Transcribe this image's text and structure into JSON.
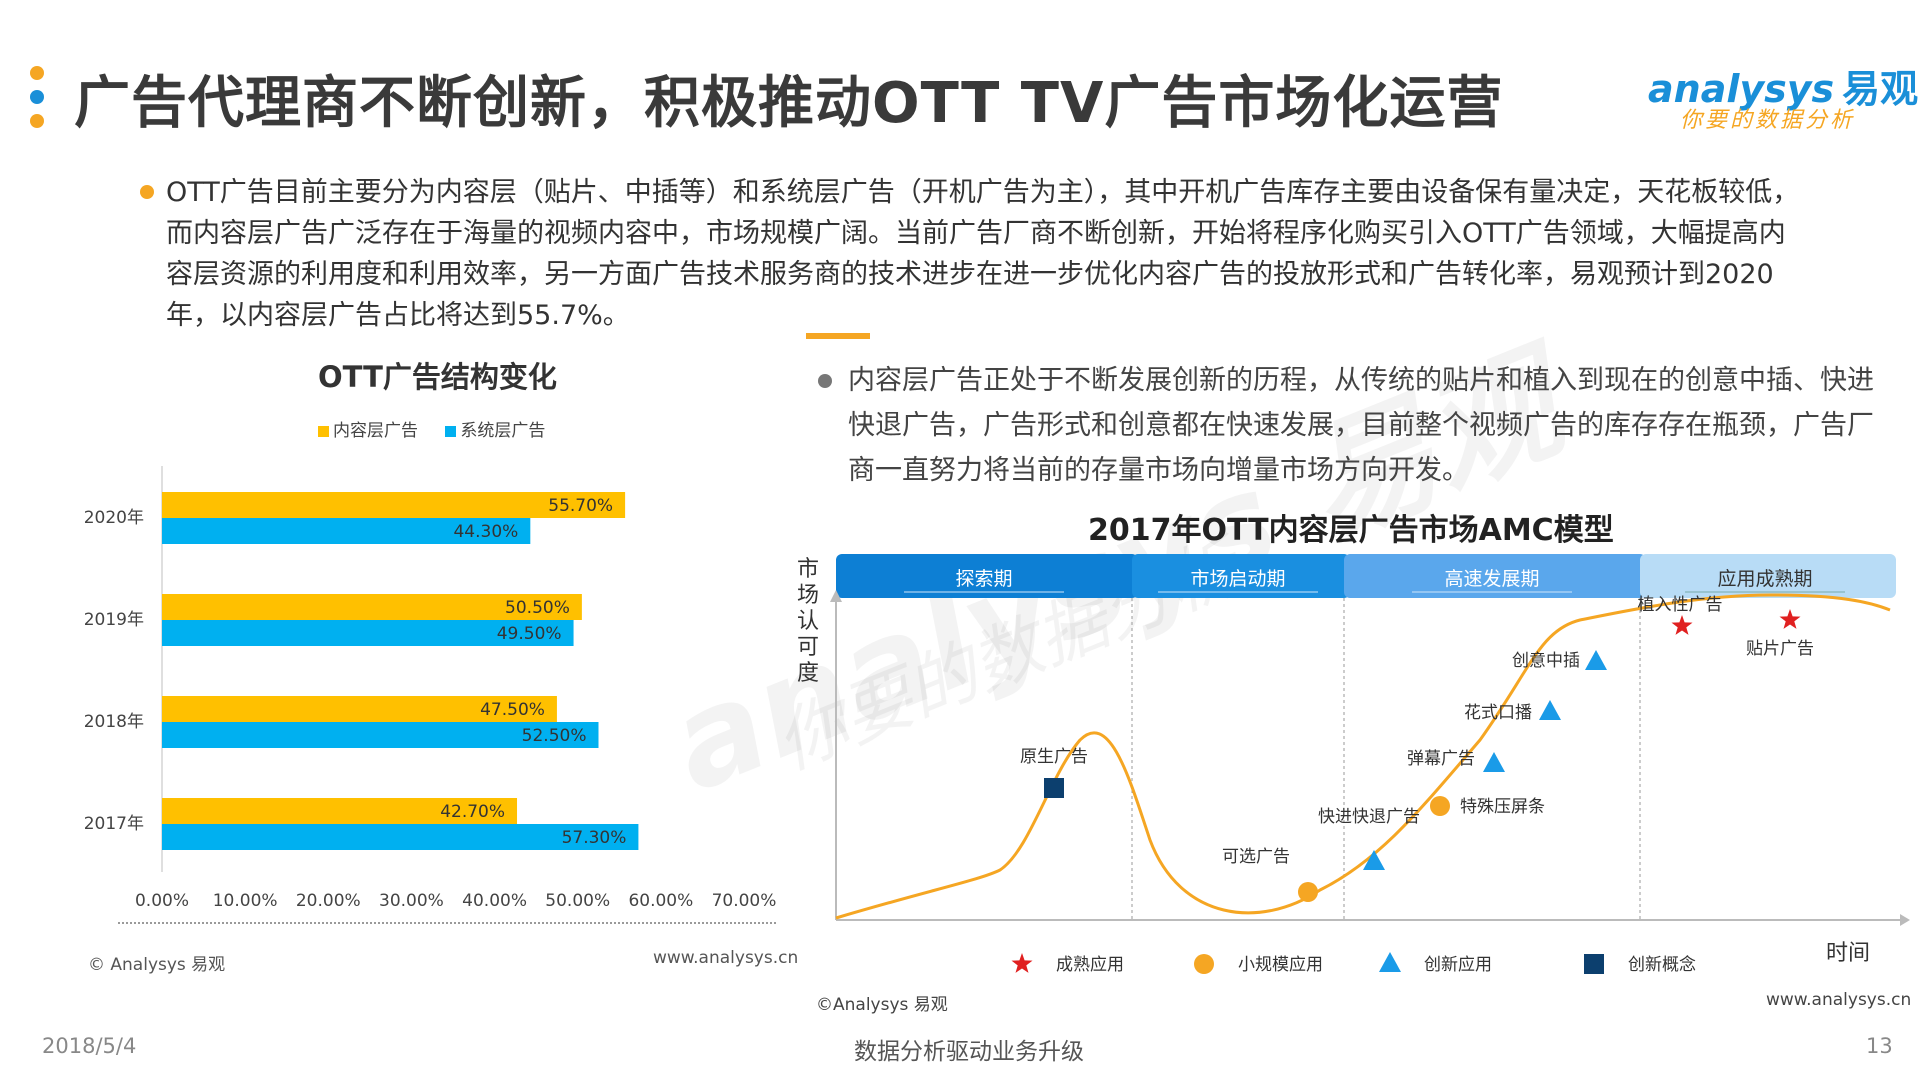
{
  "header": {
    "title": "广告代理商不断创新，积极推动OTT TV广告市场化运营",
    "logo_text": "nalysys",
    "logo_initial": "a",
    "logo_cn": "易观",
    "logo_slogan": "你要的数据分析",
    "dot_colors": [
      "#f5a623",
      "#1a8fd8",
      "#f5a623"
    ]
  },
  "paragraph1": "OTT广告目前主要分为内容层（贴片、中插等）和系统层广告（开机广告为主），其中开机广告库存主要由设备保有量决定，天花板较低，而内容层广告广泛存在于海量的视频内容中，市场规模广阔。当前广告厂商不断创新，开始将程序化购买引入OTT广告领域，大幅提高内容层资源的利用度和利用效率，另一方面广告技术服务商的技术进步在进一步优化内容广告的投放形式和广告转化率，易观预计到2020年，以内容层广告占比将达到55.7%。",
  "paragraph2": "内容层广告正处于不断发展创新的历程，从传统的贴片和植入到现在的创意中插、快进快退广告，广告形式和创意都在快速发展，目前整个视频广告的库存存在瓶颈，广告厂商一直努力将当前的存量市场向增量市场方向开发。",
  "watermark": {
    "line1": "analysys 易观",
    "line2": "你要的数据分析"
  },
  "chart_data": [
    {
      "type": "bar",
      "orientation": "horizontal",
      "title": "OTT广告结构变化",
      "categories": [
        "2020年",
        "2019年",
        "2018年",
        "2017年"
      ],
      "series": [
        {
          "name": "内容层广告",
          "color": "#ffc000",
          "values": [
            55.7,
            50.5,
            47.5,
            42.7
          ],
          "labels": [
            "55.70%",
            "50.50%",
            "47.50%",
            "42.70%"
          ]
        },
        {
          "name": "系统层广告",
          "color": "#00b0f0",
          "values": [
            44.3,
            49.5,
            52.5,
            57.3
          ],
          "labels": [
            "44.30%",
            "49.50%",
            "52.50%",
            "57.30%"
          ]
        }
      ],
      "xlim": [
        0,
        70
      ],
      "xticks": [
        "0.00%",
        "10.00%",
        "20.00%",
        "30.00%",
        "40.00%",
        "50.00%",
        "60.00%",
        "70.00%"
      ],
      "legend_position": "top",
      "source_left": "© Analysys 易观",
      "source_right": "www.analysys.cn"
    },
    {
      "type": "line",
      "title": "2017年OTT内容层广告市场AMC模型",
      "ylabel": "市场认可度",
      "xlabel": "时间",
      "stages": [
        "探索期",
        "市场启动期",
        "高速发展期",
        "应用成熟期"
      ],
      "stage_colors": [
        "#0d7fd4",
        "#1a8fe0",
        "#5aa7ec",
        "#b8dcf6"
      ],
      "points": [
        {
          "label": "原生广告",
          "marker": "square"
        },
        {
          "label": "可选广告",
          "marker": "circle"
        },
        {
          "label": "快进快退广告",
          "marker": "triangle"
        },
        {
          "label": "特殊压屏条",
          "marker": "circle"
        },
        {
          "label": "弹幕广告",
          "marker": "triangle"
        },
        {
          "label": "花式口播",
          "marker": "triangle"
        },
        {
          "label": "创意中插",
          "marker": "triangle"
        },
        {
          "label": "植入性广告",
          "marker": "star"
        },
        {
          "label": "贴片广告",
          "marker": "star"
        }
      ],
      "legend": [
        {
          "marker": "star",
          "label": "成熟应用",
          "color": "#e02020"
        },
        {
          "marker": "circle",
          "label": "小规模应用",
          "color": "#f5a623"
        },
        {
          "marker": "triangle",
          "label": "创新应用",
          "color": "#1a9be8"
        },
        {
          "marker": "square",
          "label": "创新概念",
          "color": "#0c3f6e"
        }
      ],
      "curve_color": "#f5a623",
      "source_left": "©Analysys 易观",
      "source_right": "www.analysys.cn"
    }
  ],
  "footer": {
    "date": "2018/5/4",
    "center": "数据分析驱动业务升级",
    "page": "13"
  }
}
